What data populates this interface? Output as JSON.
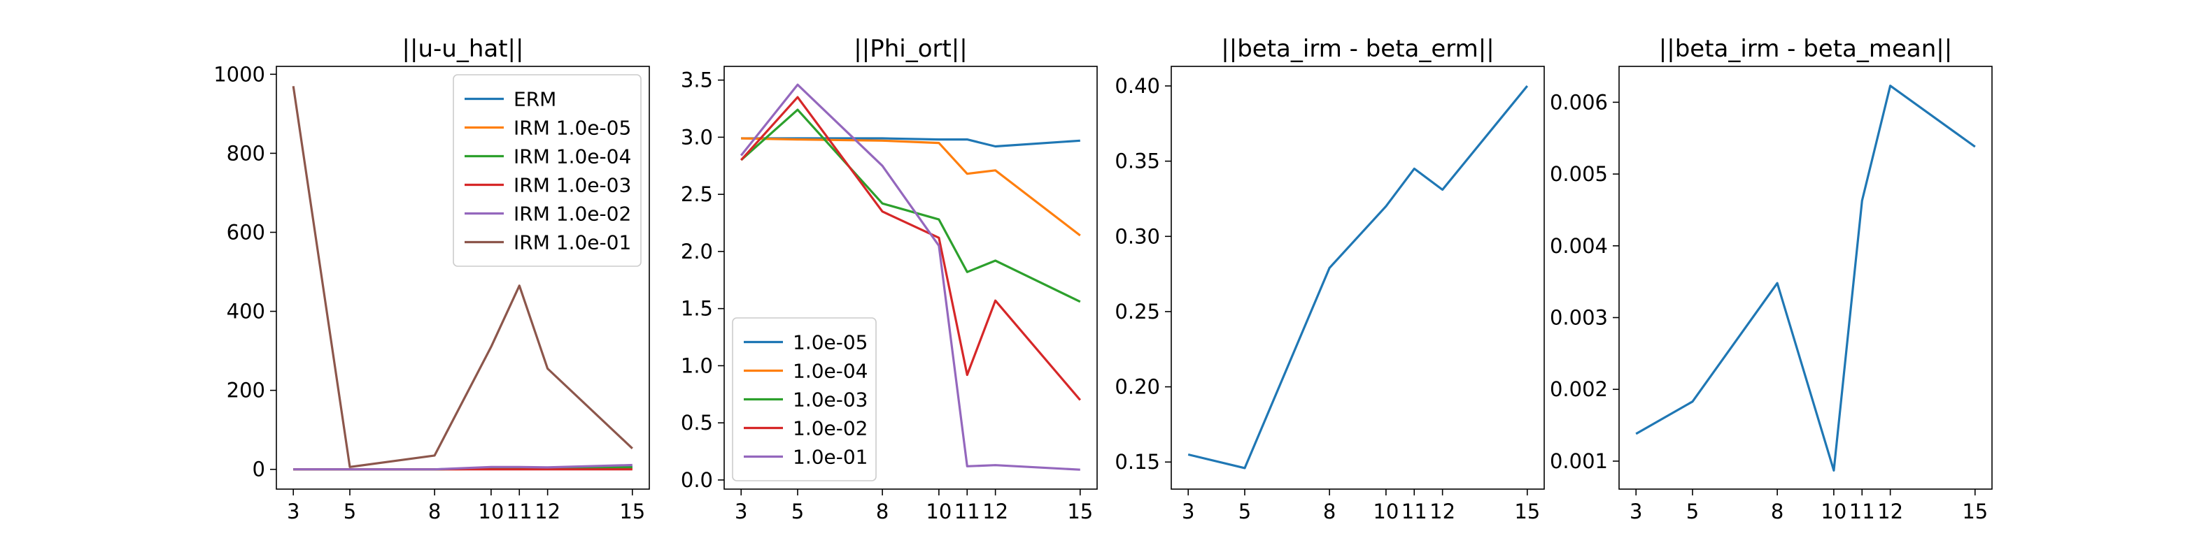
{
  "colors": {
    "series": [
      "#1f77b4",
      "#ff7f0e",
      "#2ca02c",
      "#d62728",
      "#9467bd",
      "#8c564b"
    ],
    "axis": "#000000",
    "legend_border": "#cccccc"
  },
  "chart_data": [
    {
      "type": "line",
      "title": "||u-u_hat||",
      "x": [
        3,
        5,
        8,
        10,
        11,
        12,
        15
      ],
      "xticks": [
        3,
        5,
        8,
        10,
        11,
        12,
        15
      ],
      "ylim": [
        -50,
        1020
      ],
      "yticks": [
        0,
        200,
        400,
        600,
        800,
        1000
      ],
      "tick_decimals": 0,
      "grid": false,
      "legend_position": "top-right",
      "series": [
        {
          "name": "ERM",
          "values": [
            0,
            0,
            0,
            3,
            3,
            3,
            7
          ]
        },
        {
          "name": "IRM 1.0e-05",
          "values": [
            0,
            0,
            0,
            1,
            1,
            1,
            2
          ]
        },
        {
          "name": "IRM 1.0e-04",
          "values": [
            0,
            0,
            0,
            2,
            2,
            2,
            5
          ]
        },
        {
          "name": "IRM 1.0e-03",
          "values": [
            0,
            0,
            0,
            0,
            0,
            0,
            0
          ]
        },
        {
          "name": "IRM 1.0e-02",
          "values": [
            0,
            0,
            0,
            6,
            6,
            5,
            11
          ]
        },
        {
          "name": "IRM 1.0e-01",
          "values": [
            970,
            6,
            35,
            310,
            465,
            255,
            53
          ]
        }
      ]
    },
    {
      "type": "line",
      "title": "||Phi_ort||",
      "x": [
        3,
        5,
        8,
        10,
        11,
        12,
        15
      ],
      "xticks": [
        3,
        5,
        8,
        10,
        11,
        12,
        15
      ],
      "ylim": [
        -0.08,
        3.62
      ],
      "yticks": [
        0.0,
        0.5,
        1.0,
        1.5,
        2.0,
        2.5,
        3.0,
        3.5
      ],
      "tick_decimals": 1,
      "grid": false,
      "legend_position": "bottom-left",
      "series": [
        {
          "name": "1.0e-05",
          "values": [
            2.99,
            2.99,
            2.99,
            2.98,
            2.98,
            2.92,
            2.97
          ]
        },
        {
          "name": "1.0e-04",
          "values": [
            2.99,
            2.98,
            2.97,
            2.95,
            2.68,
            2.71,
            2.14
          ]
        },
        {
          "name": "1.0e-03",
          "values": [
            2.8,
            3.24,
            2.42,
            2.28,
            1.82,
            1.92,
            1.56
          ]
        },
        {
          "name": "1.0e-02",
          "values": [
            2.8,
            3.35,
            2.35,
            2.12,
            0.92,
            1.57,
            0.7
          ]
        },
        {
          "name": "1.0e-01",
          "values": [
            2.84,
            3.46,
            2.75,
            2.05,
            0.12,
            0.13,
            0.09
          ]
        }
      ]
    },
    {
      "type": "line",
      "title": "||beta_irm - beta_erm||",
      "x": [
        3,
        5,
        8,
        10,
        11,
        12,
        15
      ],
      "xticks": [
        3,
        5,
        8,
        10,
        11,
        12,
        15
      ],
      "ylim": [
        0.132,
        0.413
      ],
      "yticks": [
        0.15,
        0.2,
        0.25,
        0.3,
        0.35,
        0.4
      ],
      "tick_decimals": 2,
      "grid": false,
      "legend_position": "none",
      "series": [
        {
          "name": "",
          "values": [
            0.155,
            0.146,
            0.279,
            0.32,
            0.345,
            0.331,
            0.4
          ]
        }
      ]
    },
    {
      "type": "line",
      "title": "||beta_irm - beta_mean||",
      "x": [
        3,
        5,
        8,
        10,
        11,
        12,
        15
      ],
      "xticks": [
        3,
        5,
        8,
        10,
        11,
        12,
        15
      ],
      "ylim": [
        0.00061,
        0.0065
      ],
      "yticks": [
        0.001,
        0.002,
        0.003,
        0.004,
        0.005,
        0.006
      ],
      "tick_decimals": 3,
      "grid": false,
      "legend_position": "none",
      "series": [
        {
          "name": "",
          "values": [
            0.00138,
            0.00183,
            0.00348,
            0.00087,
            0.00463,
            0.00623,
            0.00538
          ]
        }
      ]
    }
  ]
}
